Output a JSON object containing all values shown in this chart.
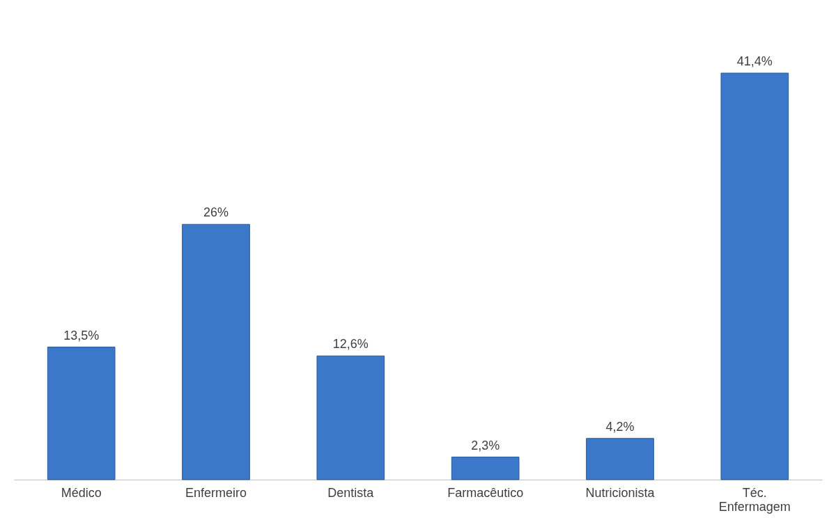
{
  "chart_data": {
    "type": "bar",
    "categories": [
      "Médico",
      "Enfermeiro",
      "Dentista",
      "Farmacêutico",
      "Nutricionista",
      "Téc. Enfermagem"
    ],
    "values": [
      13.5,
      26,
      12.6,
      2.3,
      4.2,
      41.4
    ],
    "value_labels": [
      "13,5%",
      "26%",
      "12,6%",
      "2,3%",
      "4,2%",
      "41,4%"
    ],
    "color": "#3b78c9",
    "grid": false
  }
}
